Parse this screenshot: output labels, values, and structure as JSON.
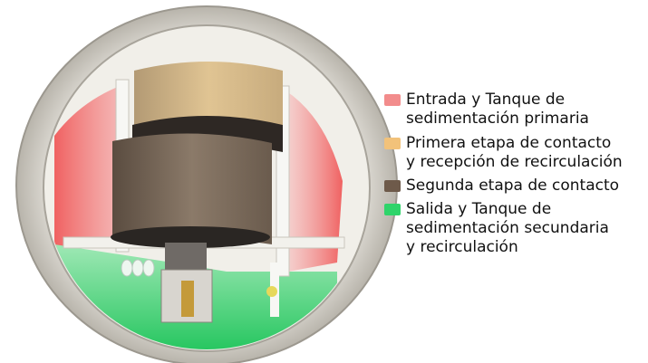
{
  "legend": {
    "items": [
      {
        "lines": [
          "Entrada y Tanque de",
          "sedimentación primaria"
        ],
        "color": "#f28c8c"
      },
      {
        "lines": [
          "Primera etapa de contacto",
          "y recepción de recirculación"
        ],
        "color": "#f2c27a"
      },
      {
        "lines": [
          "Segunda etapa de contacto"
        ],
        "color": "#6e5a4a"
      },
      {
        "lines": [
          "Salida y Tanque de",
          "sedimentación secundaria",
          "y recirculación"
        ],
        "color": "#2fd46a"
      }
    ]
  }
}
